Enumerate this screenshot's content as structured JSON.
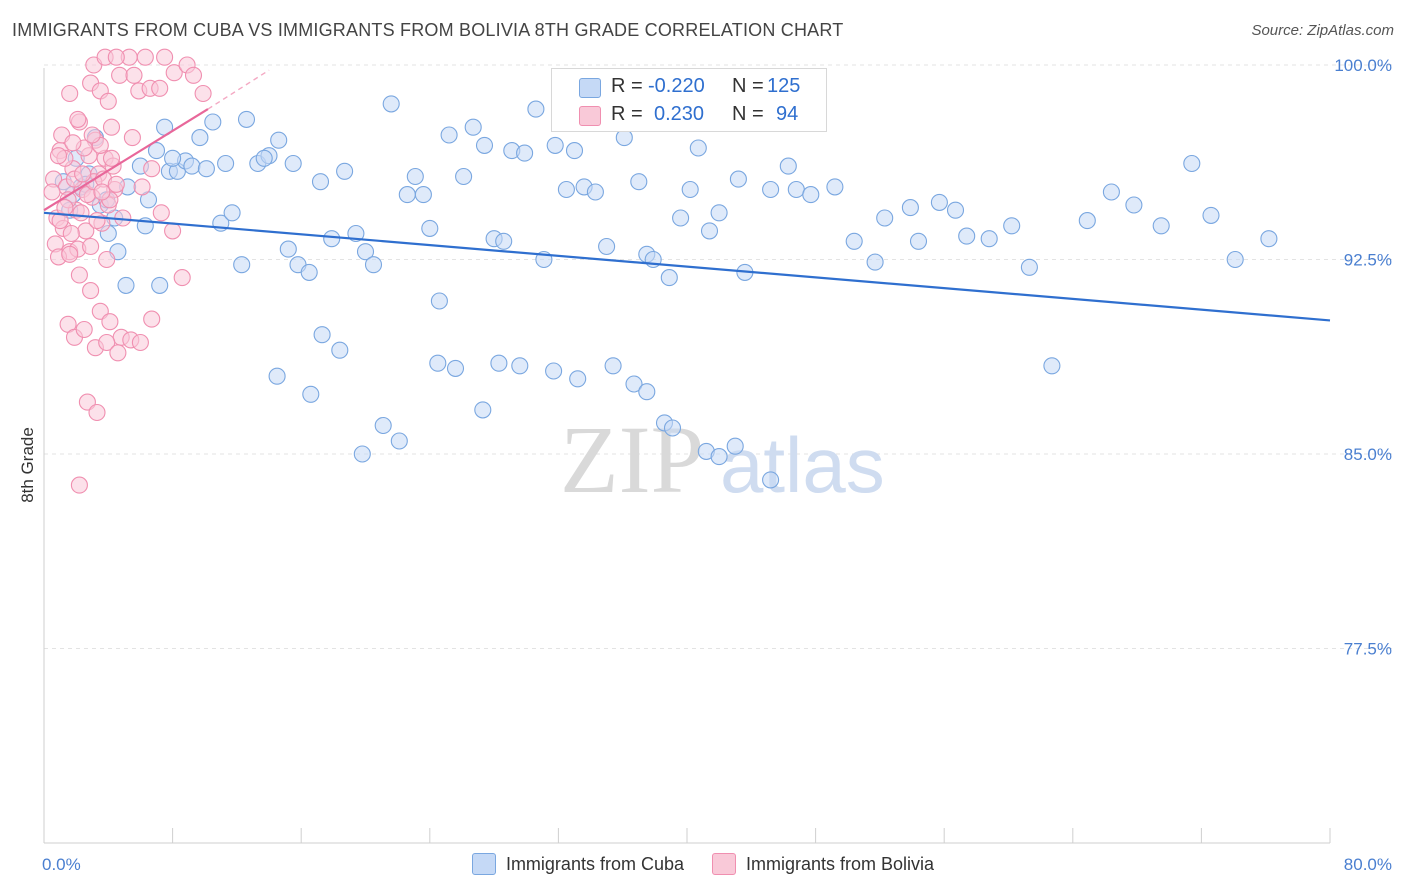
{
  "title": "IMMIGRANTS FROM CUBA VS IMMIGRANTS FROM BOLIVIA 8TH GRADE CORRELATION CHART",
  "source": "Source: ZipAtlas.com",
  "watermark": {
    "zip": "ZIP",
    "atlas": "atlas"
  },
  "stats": [
    {
      "r_label": "R =",
      "r_value": "-0.220",
      "n_label": "N =",
      "n_value": "125",
      "color": "#7aa7e0"
    },
    {
      "r_label": "R =",
      "r_value": "0.230",
      "n_label": "N =",
      "n_value": "94",
      "color": "#f08fb0"
    }
  ],
  "legend": [
    {
      "label": "Immigrants from Cuba",
      "fill": "#c5d9f6",
      "stroke": "#7aa7e0"
    },
    {
      "label": "Immigrants from Bolivia",
      "fill": "#f9c9d8",
      "stroke": "#f08fb0"
    }
  ],
  "chart_data": {
    "type": "scatter",
    "ylabel": "8th Grade",
    "xlim": [
      0,
      80
    ],
    "ylim": [
      70.0,
      100.5
    ],
    "x_tick_labels": [
      {
        "value": 0,
        "label": "0.0%"
      },
      {
        "value": 80,
        "label": "80.0%"
      }
    ],
    "y_tick_labels": [
      {
        "value": 100.0,
        "label": "100.0%"
      },
      {
        "value": 92.5,
        "label": "92.5%"
      },
      {
        "value": 85.0,
        "label": "85.0%"
      },
      {
        "value": 77.5,
        "label": "77.5%"
      }
    ],
    "x_minor_ticks": [
      8,
      16,
      24,
      32,
      40,
      48,
      56,
      64,
      72,
      80
    ],
    "grid": true,
    "series": [
      {
        "name": "Immigrants from Cuba",
        "color": "#7aa7e0",
        "fill": "#c5d9f6",
        "trend": {
          "x": [
            0,
            80
          ],
          "y": [
            94.3,
            90.15
          ]
        },
        "points": [
          [
            1.2,
            95.5
          ],
          [
            1.8,
            95.0
          ],
          [
            2.3,
            95.3
          ],
          [
            2.8,
            95.8
          ],
          [
            3.5,
            94.6
          ],
          [
            4.0,
            93.5
          ],
          [
            4.6,
            92.8
          ],
          [
            5.2,
            95.3
          ],
          [
            6.0,
            96.1
          ],
          [
            6.5,
            94.8
          ],
          [
            7.5,
            97.6
          ],
          [
            7.8,
            95.9
          ],
          [
            8.3,
            95.9
          ],
          [
            8.8,
            96.3
          ],
          [
            9.7,
            97.2
          ],
          [
            10.5,
            97.8
          ],
          [
            11.0,
            93.9
          ],
          [
            11.7,
            94.3
          ],
          [
            12.3,
            92.3
          ],
          [
            13.3,
            96.2
          ],
          [
            14.0,
            96.5
          ],
          [
            14.6,
            97.1
          ],
          [
            15.5,
            96.2
          ],
          [
            15.2,
            92.9
          ],
          [
            15.8,
            92.3
          ],
          [
            16.5,
            92.0
          ],
          [
            17.2,
            95.5
          ],
          [
            17.9,
            93.3
          ],
          [
            18.7,
            95.9
          ],
          [
            19.4,
            93.5
          ],
          [
            20.0,
            92.8
          ],
          [
            20.5,
            92.3
          ],
          [
            21.6,
            98.5
          ],
          [
            22.6,
            95.0
          ],
          [
            23.1,
            95.7
          ],
          [
            23.6,
            95.0
          ],
          [
            24.0,
            93.7
          ],
          [
            24.6,
            90.9
          ],
          [
            25.2,
            97.3
          ],
          [
            26.1,
            95.7
          ],
          [
            26.7,
            97.6
          ],
          [
            27.4,
            96.9
          ],
          [
            28.0,
            93.3
          ],
          [
            28.6,
            93.2
          ],
          [
            29.1,
            96.7
          ],
          [
            29.9,
            96.6
          ],
          [
            30.6,
            98.3
          ],
          [
            31.1,
            92.5
          ],
          [
            31.8,
            96.9
          ],
          [
            32.5,
            95.2
          ],
          [
            33.0,
            96.7
          ],
          [
            33.6,
            95.3
          ],
          [
            34.3,
            95.1
          ],
          [
            35.0,
            93.0
          ],
          [
            36.1,
            97.2
          ],
          [
            37.0,
            95.5
          ],
          [
            37.5,
            92.7
          ],
          [
            37.9,
            92.5
          ],
          [
            38.9,
            91.8
          ],
          [
            39.6,
            94.1
          ],
          [
            40.7,
            96.8
          ],
          [
            40.2,
            95.2
          ],
          [
            41.4,
            93.6
          ],
          [
            42.0,
            94.3
          ],
          [
            43.2,
            95.6
          ],
          [
            43.6,
            92.0
          ],
          [
            45.2,
            95.2
          ],
          [
            46.3,
            96.1
          ],
          [
            46.8,
            95.2
          ],
          [
            47.7,
            95.0
          ],
          [
            49.2,
            95.3
          ],
          [
            50.4,
            93.2
          ],
          [
            51.7,
            92.4
          ],
          [
            52.3,
            94.1
          ],
          [
            53.9,
            94.5
          ],
          [
            54.4,
            93.2
          ],
          [
            55.7,
            94.7
          ],
          [
            56.7,
            94.4
          ],
          [
            57.4,
            93.4
          ],
          [
            58.8,
            93.3
          ],
          [
            60.2,
            93.8
          ],
          [
            61.3,
            92.2
          ],
          [
            64.9,
            94.0
          ],
          [
            66.4,
            95.1
          ],
          [
            67.8,
            94.6
          ],
          [
            69.5,
            93.8
          ],
          [
            71.4,
            96.2
          ],
          [
            72.6,
            94.2
          ],
          [
            74.1,
            92.5
          ],
          [
            76.2,
            93.3
          ],
          [
            1.6,
            94.4
          ],
          [
            2.0,
            96.4
          ],
          [
            2.6,
            95.4
          ],
          [
            3.2,
            97.2
          ],
          [
            3.9,
            94.8
          ],
          [
            4.4,
            94.1
          ],
          [
            5.1,
            91.5
          ],
          [
            6.3,
            93.8
          ],
          [
            7.2,
            91.5
          ],
          [
            7.0,
            96.7
          ],
          [
            8.0,
            96.4
          ],
          [
            9.2,
            96.1
          ],
          [
            10.1,
            96.0
          ],
          [
            11.3,
            96.2
          ],
          [
            12.6,
            97.9
          ],
          [
            13.7,
            96.4
          ],
          [
            14.5,
            88.0
          ],
          [
            16.6,
            87.3
          ],
          [
            17.3,
            89.6
          ],
          [
            18.4,
            89.0
          ],
          [
            19.8,
            85.0
          ],
          [
            21.1,
            86.1
          ],
          [
            22.1,
            85.5
          ],
          [
            24.5,
            88.5
          ],
          [
            25.6,
            88.3
          ],
          [
            27.3,
            86.7
          ],
          [
            28.3,
            88.5
          ],
          [
            29.6,
            88.4
          ],
          [
            31.7,
            88.2
          ],
          [
            33.2,
            87.9
          ],
          [
            35.4,
            88.4
          ],
          [
            36.7,
            87.7
          ],
          [
            37.5,
            87.4
          ],
          [
            38.6,
            86.2
          ],
          [
            39.1,
            86.0
          ],
          [
            41.2,
            85.1
          ],
          [
            42.0,
            84.9
          ],
          [
            43.0,
            85.3
          ],
          [
            45.2,
            84.0
          ],
          [
            62.7,
            88.4
          ]
        ]
      },
      {
        "name": "Immigrants from Bolivia",
        "color": "#f08fb0",
        "fill": "#f9c9d8",
        "trend": {
          "x": [
            0,
            10.2
          ],
          "y": [
            94.4,
            98.3
          ]
        },
        "trend_extension": {
          "x": [
            10.2,
            14.0
          ],
          "y": [
            98.3,
            99.8
          ]
        },
        "points": [
          [
            0.6,
            95.6
          ],
          [
            0.8,
            94.1
          ],
          [
            1.0,
            96.7
          ],
          [
            1.2,
            93.7
          ],
          [
            1.4,
            95.3
          ],
          [
            1.6,
            92.8
          ],
          [
            1.8,
            96.0
          ],
          [
            2.0,
            94.4
          ],
          [
            2.2,
            97.8
          ],
          [
            2.4,
            95.2
          ],
          [
            2.6,
            93.6
          ],
          [
            2.8,
            96.5
          ],
          [
            3.0,
            94.9
          ],
          [
            3.2,
            97.1
          ],
          [
            3.4,
            95.8
          ],
          [
            3.6,
            93.9
          ],
          [
            3.8,
            96.4
          ],
          [
            4.0,
            94.6
          ],
          [
            4.2,
            97.6
          ],
          [
            4.4,
            95.2
          ],
          [
            0.7,
            93.1
          ],
          [
            0.9,
            92.6
          ],
          [
            1.1,
            97.3
          ],
          [
            1.3,
            96.4
          ],
          [
            1.5,
            94.8
          ],
          [
            1.7,
            93.5
          ],
          [
            1.9,
            95.6
          ],
          [
            2.1,
            92.9
          ],
          [
            2.3,
            94.3
          ],
          [
            2.5,
            96.8
          ],
          [
            2.7,
            95.0
          ],
          [
            2.9,
            93.0
          ],
          [
            3.1,
            95.5
          ],
          [
            3.3,
            94.0
          ],
          [
            3.5,
            96.9
          ],
          [
            3.7,
            95.6
          ],
          [
            3.9,
            92.5
          ],
          [
            4.1,
            94.8
          ],
          [
            4.3,
            96.1
          ],
          [
            4.5,
            95.4
          ],
          [
            1.6,
            98.9
          ],
          [
            2.1,
            97.9
          ],
          [
            2.9,
            99.3
          ],
          [
            3.5,
            99.0
          ],
          [
            4.0,
            98.6
          ],
          [
            4.7,
            99.6
          ],
          [
            5.3,
            100.3
          ],
          [
            5.9,
            99.0
          ],
          [
            6.6,
            99.1
          ],
          [
            7.5,
            100.3
          ],
          [
            8.1,
            99.7
          ],
          [
            8.9,
            100.0
          ],
          [
            9.3,
            99.6
          ],
          [
            9.9,
            98.9
          ],
          [
            3.1,
            100.0
          ],
          [
            3.8,
            100.3
          ],
          [
            4.5,
            100.3
          ],
          [
            5.6,
            99.6
          ],
          [
            6.3,
            100.3
          ],
          [
            7.2,
            99.1
          ],
          [
            1.0,
            94.0
          ],
          [
            1.6,
            92.7
          ],
          [
            2.2,
            91.9
          ],
          [
            2.9,
            91.3
          ],
          [
            3.5,
            90.5
          ],
          [
            4.1,
            90.1
          ],
          [
            4.8,
            89.5
          ],
          [
            5.4,
            89.4
          ],
          [
            6.0,
            89.3
          ],
          [
            6.7,
            90.2
          ],
          [
            0.5,
            95.1
          ],
          [
            0.9,
            96.5
          ],
          [
            1.3,
            94.5
          ],
          [
            1.8,
            97.0
          ],
          [
            2.4,
            95.8
          ],
          [
            3.0,
            97.3
          ],
          [
            3.6,
            95.1
          ],
          [
            4.2,
            96.4
          ],
          [
            4.9,
            94.1
          ],
          [
            5.5,
            97.2
          ],
          [
            6.1,
            95.3
          ],
          [
            6.7,
            96.0
          ],
          [
            7.3,
            94.3
          ],
          [
            8.0,
            93.6
          ],
          [
            8.6,
            91.8
          ],
          [
            2.7,
            87.0
          ],
          [
            3.3,
            86.6
          ],
          [
            2.2,
            83.8
          ],
          [
            1.5,
            90.0
          ],
          [
            1.9,
            89.5
          ],
          [
            2.5,
            89.8
          ],
          [
            3.2,
            89.1
          ],
          [
            3.9,
            89.3
          ],
          [
            4.6,
            88.9
          ]
        ]
      }
    ]
  }
}
